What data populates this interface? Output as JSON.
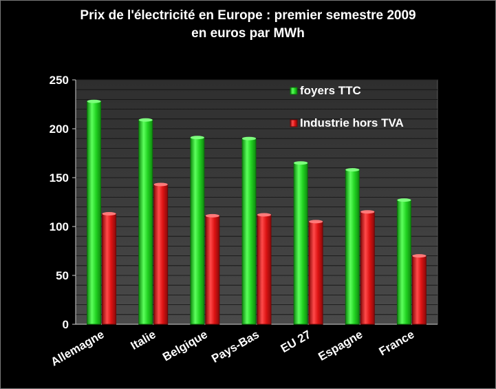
{
  "chart_data": {
    "type": "bar",
    "title": "Prix de l'électricité en Europe : premier semestre 2009",
    "subtitle": "en euros par MWh",
    "categories": [
      "Allemagne",
      "Italie",
      "Belgique",
      "Pays-Bas",
      "EU 27",
      "Espagne",
      "France"
    ],
    "series": [
      {
        "name": "foyers TTC",
        "color": "#1fd51f",
        "values": [
          228,
          209,
          191,
          190,
          165,
          158,
          127
        ]
      },
      {
        "name": "Industrie hors TVA",
        "color": "#e01010",
        "values": [
          113,
          143,
          111,
          112,
          105,
          115,
          70
        ]
      }
    ],
    "ylim": [
      0,
      250
    ],
    "yticks": [
      0,
      50,
      100,
      150,
      200,
      250
    ],
    "grid": true,
    "legend": "top-right",
    "colors": {
      "plot_background": "#3d3d3d",
      "gridline": "#101010",
      "text": "#ffffff",
      "page_background": "#000000"
    }
  }
}
